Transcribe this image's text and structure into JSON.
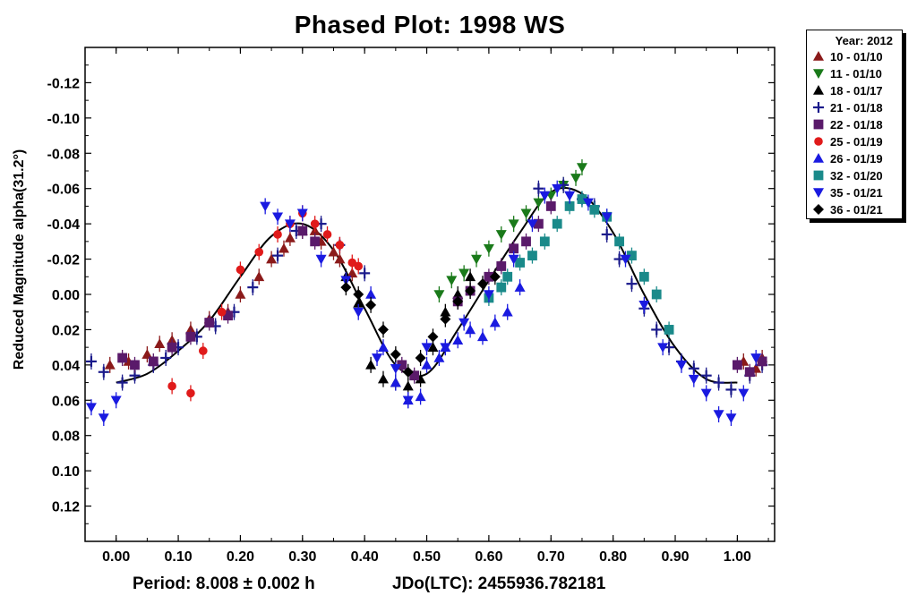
{
  "chart_data": {
    "type": "scatter",
    "title": "Phased Plot: 1998 WS",
    "ylabel": "Reduced Magnitude alpha(31.2°)",
    "xlabel": "",
    "y_inverted": true,
    "xlim": [
      -0.05,
      1.06
    ],
    "ylim": [
      -0.14,
      0.14
    ],
    "x_ticks": [
      "0.00",
      "0.10",
      "0.20",
      "0.30",
      "0.40",
      "0.50",
      "0.60",
      "0.70",
      "0.80",
      "0.90",
      "1.00"
    ],
    "y_ticks": [
      "-0.12",
      "-0.10",
      "-0.08",
      "-0.06",
      "-0.04",
      "-0.02",
      "0.00",
      "0.02",
      "0.04",
      "0.06",
      "0.08",
      "0.10",
      "0.12"
    ],
    "legend": {
      "title": "Year: 2012",
      "placement": "outside-top-right"
    },
    "period_text": "Period: 8.008 ± 0.002 h",
    "jd_text": "JDo(LTC): 2455936.782181",
    "fit_curve": {
      "x": [
        0.0,
        0.05,
        0.1,
        0.15,
        0.2,
        0.25,
        0.3,
        0.35,
        0.4,
        0.45,
        0.5,
        0.55,
        0.6,
        0.65,
        0.7,
        0.75,
        0.8,
        0.85,
        0.9,
        0.95,
        1.0
      ],
      "y": [
        0.05,
        0.045,
        0.032,
        0.015,
        -0.01,
        -0.033,
        -0.04,
        -0.025,
        0.008,
        0.04,
        0.045,
        0.02,
        -0.008,
        -0.035,
        -0.058,
        -0.057,
        -0.035,
        0.0,
        0.03,
        0.048,
        0.05
      ]
    },
    "series": [
      {
        "name": "10 - 01/10",
        "marker": "triangle-up",
        "color": "#8b1a1a",
        "x": [
          -0.01,
          0.02,
          0.05,
          0.07,
          0.09,
          0.12,
          0.15,
          0.18,
          0.2,
          0.23,
          0.25,
          0.27,
          0.28,
          0.3,
          0.32,
          0.33,
          0.35,
          0.36,
          0.38,
          1.01,
          1.03,
          1.04
        ],
        "y": [
          0.04,
          0.038,
          0.034,
          0.028,
          0.026,
          0.02,
          0.014,
          0.01,
          0.0,
          -0.01,
          -0.02,
          -0.026,
          -0.032,
          -0.036,
          -0.036,
          -0.03,
          -0.024,
          -0.02,
          -0.012,
          0.038,
          0.042,
          0.036
        ]
      },
      {
        "name": "11 - 01/10",
        "marker": "triangle-down",
        "color": "#1a7a1a",
        "x": [
          0.52,
          0.54,
          0.56,
          0.58,
          0.6,
          0.62,
          0.64,
          0.66,
          0.68,
          0.7,
          0.72,
          0.74,
          0.75
        ],
        "y": [
          0.0,
          -0.008,
          -0.012,
          -0.02,
          -0.026,
          -0.034,
          -0.04,
          -0.046,
          -0.052,
          -0.056,
          -0.062,
          -0.066,
          -0.072
        ]
      },
      {
        "name": "18 - 01/17",
        "marker": "triangle-up",
        "color": "#000000",
        "x": [
          0.37,
          0.39,
          0.41,
          0.43,
          0.45,
          0.47,
          0.49,
          0.51,
          0.53,
          0.55,
          0.57
        ],
        "y": [
          -0.01,
          0.005,
          0.04,
          0.048,
          0.05,
          0.052,
          0.048,
          0.03,
          0.01,
          0.0,
          -0.01
        ]
      },
      {
        "name": "21 - 01/18",
        "marker": "plus",
        "color": "#1a1a8b",
        "x": [
          -0.04,
          -0.02,
          0.01,
          0.03,
          0.06,
          0.08,
          0.1,
          0.13,
          0.16,
          0.19,
          0.22,
          0.26,
          0.29,
          0.33,
          0.36,
          0.4,
          0.68,
          0.72,
          0.75,
          0.77,
          0.79,
          0.81,
          0.83,
          0.85,
          0.87,
          0.89,
          0.91,
          0.93,
          0.95,
          0.97,
          0.99,
          1.02,
          1.04
        ],
        "y": [
          0.038,
          0.044,
          0.05,
          0.046,
          0.04,
          0.036,
          0.03,
          0.024,
          0.018,
          0.01,
          -0.004,
          -0.022,
          -0.036,
          -0.04,
          -0.028,
          -0.012,
          -0.06,
          -0.062,
          -0.054,
          -0.05,
          -0.034,
          -0.02,
          -0.006,
          0.008,
          0.02,
          0.03,
          0.038,
          0.042,
          0.046,
          0.05,
          0.054,
          0.046,
          0.04
        ]
      },
      {
        "name": "22 - 01/18",
        "marker": "square",
        "color": "#5a1a6a",
        "x": [
          0.01,
          0.03,
          0.06,
          0.09,
          0.12,
          0.15,
          0.18,
          0.3,
          0.32,
          0.46,
          0.48,
          0.55,
          0.57,
          0.6,
          0.62,
          0.64,
          0.66,
          0.68,
          0.7,
          1.0,
          1.02,
          1.04
        ],
        "y": [
          0.036,
          0.04,
          0.038,
          0.03,
          0.024,
          0.016,
          0.012,
          -0.036,
          -0.03,
          0.04,
          0.046,
          0.004,
          -0.002,
          -0.01,
          -0.016,
          -0.026,
          -0.03,
          -0.04,
          -0.05,
          0.04,
          0.044,
          0.038
        ]
      },
      {
        "name": "25 - 01/19",
        "marker": "circle",
        "color": "#e01a1a",
        "x": [
          0.09,
          0.12,
          0.14,
          0.17,
          0.2,
          0.23,
          0.26,
          0.28,
          0.3,
          0.32,
          0.34,
          0.36,
          0.38,
          0.39
        ],
        "y": [
          0.052,
          0.056,
          0.032,
          0.01,
          -0.014,
          -0.024,
          -0.034,
          -0.04,
          -0.046,
          -0.04,
          -0.034,
          -0.028,
          -0.018,
          -0.016
        ]
      },
      {
        "name": "26 - 01/19",
        "marker": "triangle-up",
        "color": "#1a1ae0",
        "x": [
          0.41,
          0.43,
          0.45,
          0.47,
          0.49,
          0.5,
          0.52,
          0.53,
          0.55,
          0.57,
          0.59,
          0.61,
          0.63,
          0.65
        ],
        "y": [
          0.0,
          0.03,
          0.05,
          0.06,
          0.058,
          0.04,
          0.036,
          0.03,
          0.026,
          0.02,
          0.024,
          0.016,
          0.01,
          -0.004
        ]
      },
      {
        "name": "32 - 01/20",
        "marker": "square",
        "color": "#1a8a8a",
        "x": [
          0.6,
          0.62,
          0.63,
          0.65,
          0.67,
          0.69,
          0.71,
          0.73,
          0.75,
          0.77,
          0.79,
          0.81,
          0.83,
          0.85,
          0.87,
          0.89
        ],
        "y": [
          0.002,
          -0.004,
          -0.01,
          -0.018,
          -0.022,
          -0.03,
          -0.04,
          -0.05,
          -0.054,
          -0.048,
          -0.044,
          -0.03,
          -0.022,
          -0.01,
          0.0,
          0.02
        ]
      },
      {
        "name": "35 - 01/21",
        "marker": "triangle-down",
        "color": "#1a1ae0",
        "x": [
          -0.04,
          -0.02,
          0.0,
          0.24,
          0.26,
          0.28,
          0.3,
          0.33,
          0.37,
          0.39,
          0.42,
          0.45,
          0.47,
          0.5,
          0.53,
          0.56,
          0.6,
          0.64,
          0.67,
          0.69,
          0.71,
          0.73,
          0.76,
          0.79,
          0.82,
          0.85,
          0.88,
          0.91,
          0.93,
          0.95,
          0.97,
          0.99,
          1.01,
          1.03
        ],
        "y": [
          0.064,
          0.07,
          0.06,
          -0.05,
          -0.044,
          -0.04,
          -0.046,
          -0.02,
          -0.008,
          0.01,
          0.036,
          0.042,
          0.06,
          0.03,
          0.03,
          0.016,
          0.0,
          -0.02,
          -0.04,
          -0.056,
          -0.06,
          -0.056,
          -0.052,
          -0.044,
          -0.02,
          0.006,
          0.03,
          0.04,
          0.048,
          0.056,
          0.068,
          0.07,
          0.056,
          0.036
        ]
      },
      {
        "name": "36 - 01/21",
        "marker": "diamond",
        "color": "#000000",
        "x": [
          0.37,
          0.39,
          0.41,
          0.43,
          0.45,
          0.47,
          0.49,
          0.51,
          0.53,
          0.55,
          0.57,
          0.59,
          0.61
        ],
        "y": [
          -0.004,
          0.0,
          0.006,
          0.02,
          0.034,
          0.044,
          0.036,
          0.024,
          0.014,
          0.004,
          -0.002,
          -0.006,
          -0.01
        ]
      }
    ]
  }
}
